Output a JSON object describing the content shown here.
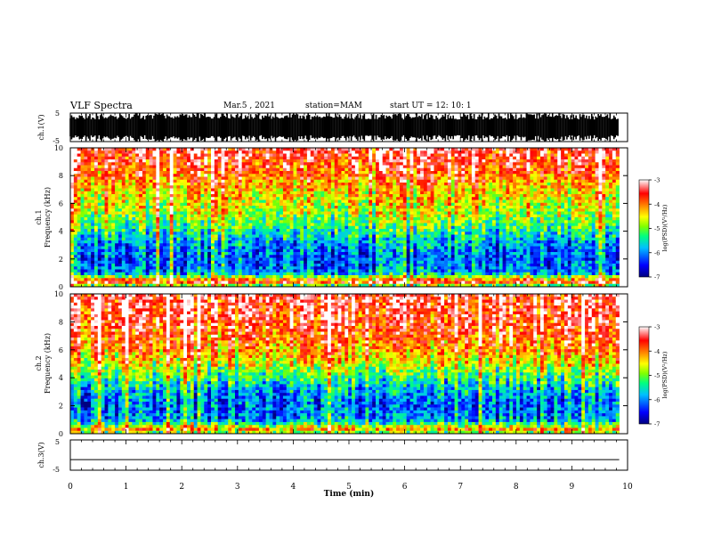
{
  "header": {
    "title": "VLF Spectra",
    "date": "Mar.5 , 2021",
    "station": "station=MAM",
    "start_ut": "start UT = 12: 10: 1"
  },
  "chart_data": [
    {
      "type": "line",
      "panel": "ch1-waveform",
      "ylabel": "ch.1(V)",
      "ylim": [
        -5,
        5
      ],
      "ytick_labels": [
        "5",
        "-5"
      ],
      "xlim": [
        0,
        10
      ],
      "description_color": "#000000",
      "fill": "dense black waveform filling the panel"
    },
    {
      "type": "heatmap",
      "panel": "ch1-spectrogram",
      "ylabel_lines": [
        "ch.1",
        "Frequency (kHz)"
      ],
      "ylim": [
        0,
        10
      ],
      "ytick_labels": [
        "0",
        "2",
        "4",
        "6",
        "8",
        "10"
      ],
      "xlim": [
        0,
        10
      ],
      "data_end_min": 9.85,
      "colorbar": {
        "label": "log(PSD)(V²/Hz)",
        "range": [
          -7,
          -3
        ],
        "tick_labels": [
          "-3",
          "-4",
          "-5",
          "-6",
          "-7"
        ]
      },
      "profile_by_freq_khz": [
        [
          0,
          -5.6
        ],
        [
          0.35,
          -3.4
        ],
        [
          1,
          -6.0
        ],
        [
          2,
          -6.2
        ],
        [
          3,
          -6.0
        ],
        [
          4,
          -5.4
        ],
        [
          5,
          -4.9
        ],
        [
          6,
          -4.6
        ],
        [
          7,
          -4.3
        ],
        [
          8,
          -3.9
        ],
        [
          9,
          -3.6
        ],
        [
          10,
          -3.4
        ]
      ]
    },
    {
      "type": "heatmap",
      "panel": "ch2-spectrogram",
      "ylabel_lines": [
        "ch.2",
        "Frequency (kHz)"
      ],
      "ylim": [
        0,
        10
      ],
      "ytick_labels": [
        "0",
        "2",
        "4",
        "6",
        "8",
        "10"
      ],
      "xlim": [
        0,
        10
      ],
      "data_end_min": 9.85,
      "colorbar": {
        "label": "log(PSD)(V²/Hz)",
        "range": [
          -7,
          -3
        ],
        "tick_labels": [
          "-3",
          "-4",
          "-5",
          "-6",
          "-7"
        ]
      },
      "profile_by_freq_khz": [
        [
          0,
          -5.2
        ],
        [
          0.3,
          -4.2
        ],
        [
          1,
          -6.0
        ],
        [
          2,
          -6.2
        ],
        [
          3,
          -5.9
        ],
        [
          4,
          -5.3
        ],
        [
          5,
          -4.6
        ],
        [
          6,
          -4.1
        ],
        [
          7,
          -3.8
        ],
        [
          8,
          -3.6
        ],
        [
          9,
          -3.5
        ],
        [
          10,
          -3.4
        ]
      ]
    },
    {
      "type": "line",
      "panel": "ch3-waveform",
      "ylabel": "ch.3(V)",
      "ylim": [
        -5,
        5
      ],
      "ytick_labels": [
        "5",
        "-5"
      ],
      "xlim": [
        0,
        10
      ],
      "series": [
        {
          "x": [
            0,
            9.85
          ],
          "y": [
            -1.5,
            -1.5
          ]
        }
      ]
    }
  ],
  "xaxis": {
    "label": "Time (min)",
    "range": [
      0,
      10
    ],
    "tick_labels": [
      "0",
      "1",
      "2",
      "3",
      "4",
      "5",
      "6",
      "7",
      "8",
      "9",
      "10"
    ]
  },
  "colors": {
    "colormap": [
      "#00007f",
      "#0000ff",
      "#00bfff",
      "#00ff80",
      "#80ff00",
      "#ffff00",
      "#ff8000",
      "#ff0000",
      "#ffffff"
    ],
    "axis": "#000000"
  }
}
